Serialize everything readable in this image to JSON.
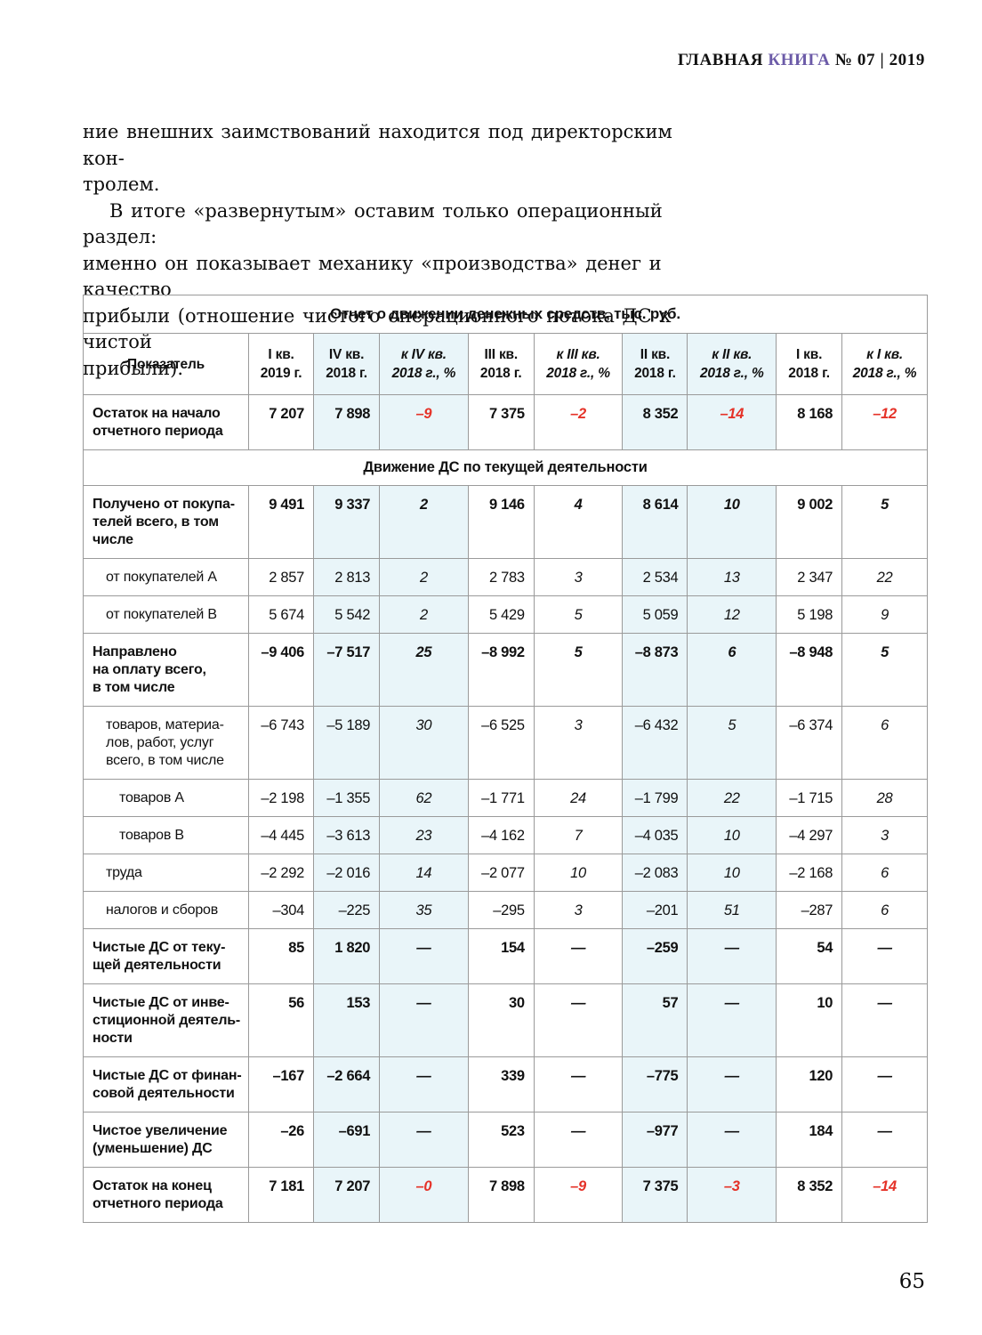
{
  "colors": {
    "purple": "#6c5ba8",
    "red": "#e53228",
    "blue": "#e9f5f9",
    "border": "#9a9a9a"
  },
  "header": {
    "brand_black": "ГЛАВНАЯ",
    "brand_purple": "КНИГА",
    "issue": "№ 07 | 2019"
  },
  "intro": {
    "para1": "ние внешних заимствований находится под директорским кон-\nтролем.",
    "para2": "В итоге «развернутым» оставим только операционный раздел:\nименно он показывает механику «производства» денег и качество\nприбыли (отношение чистого операционного потока ДС к чистой\nприбыли)."
  },
  "table": {
    "title": "Отчет о движении денежных средств, тыс. руб.",
    "columns": [
      {
        "label": "Показатель",
        "italic": false,
        "blue": false
      },
      {
        "label": "I кв.\n2019 г.",
        "italic": false,
        "blue": false
      },
      {
        "label": "IV кв.\n2018 г.",
        "italic": false,
        "blue": true
      },
      {
        "label": "к IV кв.\n2018 г., %",
        "italic": true,
        "blue": true
      },
      {
        "label": "III кв.\n2018 г.",
        "italic": false,
        "blue": false
      },
      {
        "label": "к III кв.\n2018 г., %",
        "italic": true,
        "blue": false
      },
      {
        "label": "II кв.\n2018 г.",
        "italic": false,
        "blue": true
      },
      {
        "label": "к II кв.\n2018 г., %",
        "italic": true,
        "blue": true
      },
      {
        "label": "I кв.\n2018 г.",
        "italic": false,
        "blue": false
      },
      {
        "label": "к I кв.\n2018 г., %",
        "italic": true,
        "blue": false
      }
    ],
    "rows": [
      {
        "label": "Остаток на начало\nотчетного периода",
        "type": "main",
        "values": [
          "7 207",
          "7 898",
          "–9",
          "7 375",
          "–2",
          "8 352",
          "–14",
          "8 168",
          "–12"
        ]
      },
      {
        "section": "Движение ДС по текущей деятельности"
      },
      {
        "label": "Получено от покупа-\nтелей всего, в том\nчисле",
        "type": "main",
        "values": [
          "9 491",
          "9 337",
          "2",
          "9 146",
          "4",
          "8 614",
          "10",
          "9 002",
          "5"
        ]
      },
      {
        "label": "от покупателей А",
        "type": "sub",
        "values": [
          "2 857",
          "2 813",
          "2",
          "2 783",
          "3",
          "2 534",
          "13",
          "2 347",
          "22"
        ]
      },
      {
        "label": "от покупателей В",
        "type": "sub",
        "values": [
          "5 674",
          "5 542",
          "2",
          "5 429",
          "5",
          "5 059",
          "12",
          "5 198",
          "9"
        ]
      },
      {
        "label": "Направлено\nна оплату всего,\nв том числе",
        "type": "main",
        "values": [
          "–9 406",
          "–7 517",
          "25",
          "–8 992",
          "5",
          "–8 873",
          "6",
          "–8 948",
          "5"
        ]
      },
      {
        "label": "товаров, материа-\nлов, работ, услуг\nвсего, в том числе",
        "type": "sub",
        "values": [
          "–6 743",
          "–5 189",
          "30",
          "–6 525",
          "3",
          "–6 432",
          "5",
          "–6 374",
          "6"
        ]
      },
      {
        "label": "товаров А",
        "type": "sub2",
        "values": [
          "–2 198",
          "–1 355",
          "62",
          "–1 771",
          "24",
          "–1 799",
          "22",
          "–1 715",
          "28"
        ]
      },
      {
        "label": "товаров В",
        "type": "sub2",
        "values": [
          "–4 445",
          "–3 613",
          "23",
          "–4 162",
          "7",
          "–4 035",
          "10",
          "–4 297",
          "3"
        ]
      },
      {
        "label": "труда",
        "type": "sub",
        "values": [
          "–2 292",
          "–2 016",
          "14",
          "–2 077",
          "10",
          "–2 083",
          "10",
          "–2 168",
          "6"
        ]
      },
      {
        "label": "налогов и сборов",
        "type": "sub",
        "values": [
          "–304",
          "–225",
          "35",
          "–295",
          "3",
          "–201",
          "51",
          "–287",
          "6"
        ]
      },
      {
        "label": "Чистые ДС от теку-\nщей деятельности",
        "type": "main",
        "values": [
          "85",
          "1 820",
          "—",
          "154",
          "—",
          "–259",
          "—",
          "54",
          "—"
        ]
      },
      {
        "label": "Чистые ДС от инве-\nстиционной деятель-\nности",
        "type": "main",
        "values": [
          "56",
          "153",
          "—",
          "30",
          "—",
          "57",
          "—",
          "10",
          "—"
        ]
      },
      {
        "label": "Чистые ДС от финан-\nсовой деятельности",
        "type": "main",
        "values": [
          "–167",
          "–2 664",
          "—",
          "339",
          "—",
          "–775",
          "—",
          "120",
          "—"
        ]
      },
      {
        "label": "Чистое увеличение\n(уменьшение) ДС",
        "type": "main",
        "values": [
          "–26",
          "–691",
          "—",
          "523",
          "—",
          "–977",
          "—",
          "184",
          "—"
        ]
      },
      {
        "label": "Остаток на конец\nотчетного периода",
        "type": "main",
        "values": [
          "7 181",
          "7 207",
          "–0",
          "7 898",
          "–9",
          "7 375",
          "–3",
          "8 352",
          "–14"
        ]
      }
    ]
  },
  "footer": {
    "page_number": "65"
  }
}
